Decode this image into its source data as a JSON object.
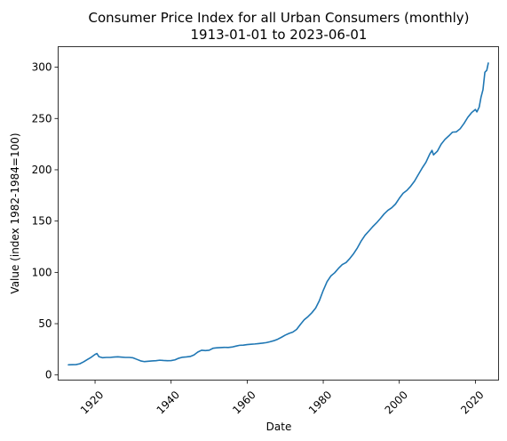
{
  "chart_data": {
    "type": "line",
    "title": "Consumer Price Index for all Urban Consumers (monthly)",
    "subtitle": "1913-01-01 to 2023-06-01",
    "xlabel": "Date",
    "ylabel": "Value (index 1982-1984=100)",
    "x_type": "year",
    "xlim": [
      1910.3,
      2026.1
    ],
    "ylim": [
      -5,
      320
    ],
    "x_ticks": [
      1920,
      1940,
      1960,
      1980,
      2000,
      2020
    ],
    "x_tick_labels": [
      "1920",
      "1940",
      "1960",
      "1980",
      "2000",
      "2020"
    ],
    "y_ticks": [
      0,
      50,
      100,
      150,
      200,
      250,
      300
    ],
    "y_tick_labels": [
      "0",
      "50",
      "100",
      "150",
      "200",
      "250",
      "300"
    ],
    "x_tick_rotation": -45,
    "grid": false,
    "legend": "none",
    "line_color": "#1f77b4",
    "series": [
      {
        "x": [
          1913,
          1914,
          1915,
          1916,
          1917,
          1918,
          1919,
          1920,
          1920.5,
          1921,
          1922,
          1923,
          1924,
          1925,
          1926,
          1927,
          1928,
          1929,
          1930,
          1931,
          1932,
          1933,
          1934,
          1935,
          1936,
          1937,
          1938,
          1939,
          1940,
          1941,
          1942,
          1943,
          1944,
          1945,
          1946,
          1947,
          1948,
          1949,
          1950,
          1951,
          1952,
          1953,
          1954,
          1955,
          1956,
          1957,
          1958,
          1959,
          1960,
          1961,
          1962,
          1963,
          1964,
          1965,
          1966,
          1967,
          1968,
          1969,
          1970,
          1971,
          1972,
          1973,
          1974,
          1975,
          1976,
          1977,
          1978,
          1979,
          1980,
          1981,
          1982,
          1983,
          1984,
          1985,
          1986,
          1987,
          1988,
          1989,
          1990,
          1991,
          1992,
          1993,
          1994,
          1995,
          1996,
          1997,
          1998,
          1999,
          2000,
          2001,
          2002,
          2003,
          2004,
          2005,
          2006,
          2007,
          2008,
          2008.6,
          2009,
          2010,
          2011,
          2012,
          2013,
          2014,
          2015,
          2016,
          2017,
          2018,
          2019,
          2020,
          2020.4,
          2021,
          2021.5,
          2022,
          2022.5,
          2023,
          2023.4
        ],
        "y": [
          9.9,
          10.0,
          10.1,
          10.9,
          12.8,
          15.1,
          17.3,
          20.0,
          20.9,
          17.9,
          16.8,
          17.1,
          17.1,
          17.5,
          17.7,
          17.4,
          17.1,
          17.1,
          16.7,
          15.2,
          13.7,
          13.0,
          13.4,
          13.7,
          13.9,
          14.4,
          14.1,
          13.9,
          14.0,
          14.7,
          16.3,
          17.3,
          17.6,
          18.0,
          19.5,
          22.3,
          24.1,
          23.8,
          24.1,
          26.0,
          26.5,
          26.7,
          26.9,
          26.8,
          27.2,
          28.1,
          28.9,
          29.1,
          29.6,
          29.9,
          30.2,
          30.6,
          31.0,
          31.5,
          32.4,
          33.4,
          34.8,
          36.7,
          38.8,
          40.5,
          41.8,
          44.4,
          49.3,
          53.8,
          56.9,
          60.6,
          65.2,
          72.6,
          82.4,
          90.9,
          96.5,
          99.6,
          103.9,
          107.6,
          109.6,
          113.6,
          118.3,
          124.0,
          130.7,
          136.2,
          140.3,
          144.5,
          148.2,
          152.4,
          156.9,
          160.5,
          163.0,
          166.6,
          172.2,
          177.1,
          179.9,
          184.0,
          188.9,
          195.3,
          201.6,
          207.3,
          215.3,
          218.9,
          214.5,
          218.1,
          224.9,
          229.6,
          233.0,
          236.7,
          237.0,
          240.0,
          245.1,
          251.1,
          255.7,
          258.8,
          256.4,
          261.0,
          271.0,
          278.0,
          295.0,
          297.0,
          304.0
        ]
      }
    ]
  }
}
